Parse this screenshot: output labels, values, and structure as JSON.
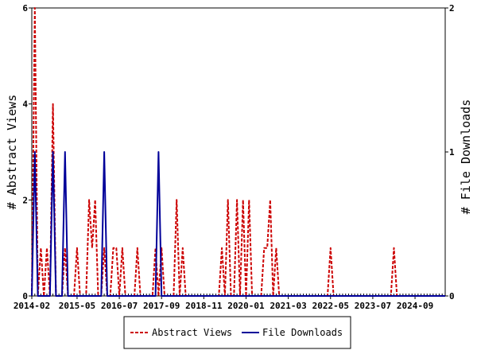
{
  "chart_data": {
    "type": "line",
    "y_left_label": "# Abstract Views",
    "y_right_label": "# File Downloads",
    "y_left_range": [
      0,
      6
    ],
    "y_right_range": [
      0,
      2
    ],
    "y_left_ticks": [
      "0",
      "2",
      "4",
      "6"
    ],
    "y_right_ticks": [
      "0",
      "1",
      "2"
    ],
    "x_range": [
      "2014-02",
      "2025-07"
    ],
    "x_tick_labels": [
      "2014-02",
      "2015-05",
      "2016-07",
      "2017-09",
      "2018-11",
      "2020-01",
      "2021-03",
      "2022-05",
      "2023-07",
      "2024-09"
    ],
    "grid": false,
    "legend_position": "bottom",
    "series": [
      {
        "name": "Abstract Views",
        "axis": "left",
        "color": "#cc0000",
        "style": "dashed",
        "points": [
          [
            "2014-02",
            0
          ],
          [
            "2014-03",
            6
          ],
          [
            "2014-04",
            0
          ],
          [
            "2014-05",
            1
          ],
          [
            "2014-06",
            0
          ],
          [
            "2014-07",
            1
          ],
          [
            "2014-08",
            0
          ],
          [
            "2014-09",
            4
          ],
          [
            "2014-10",
            0
          ],
          [
            "2014-12",
            0
          ],
          [
            "2015-01",
            1
          ],
          [
            "2015-02",
            0
          ],
          [
            "2015-04",
            0
          ],
          [
            "2015-05",
            1
          ],
          [
            "2015-06",
            0
          ],
          [
            "2015-08",
            0
          ],
          [
            "2015-09",
            2
          ],
          [
            "2015-10",
            1
          ],
          [
            "2015-11",
            2
          ],
          [
            "2015-12",
            0
          ],
          [
            "2016-01",
            0
          ],
          [
            "2016-02",
            1
          ],
          [
            "2016-03",
            0
          ],
          [
            "2016-04",
            0
          ],
          [
            "2016-05",
            1
          ],
          [
            "2016-06",
            1
          ],
          [
            "2016-07",
            0
          ],
          [
            "2016-08",
            1
          ],
          [
            "2016-09",
            0
          ],
          [
            "2016-12",
            0
          ],
          [
            "2017-01",
            1
          ],
          [
            "2017-02",
            0
          ],
          [
            "2017-06",
            0
          ],
          [
            "2017-07",
            1
          ],
          [
            "2017-08",
            0
          ],
          [
            "2017-09",
            1
          ],
          [
            "2017-10",
            0
          ],
          [
            "2018-01",
            0
          ],
          [
            "2018-02",
            2
          ],
          [
            "2018-03",
            0
          ],
          [
            "2018-04",
            1
          ],
          [
            "2018-05",
            0
          ],
          [
            "2019-04",
            0
          ],
          [
            "2019-05",
            1
          ],
          [
            "2019-06",
            0
          ],
          [
            "2019-07",
            2
          ],
          [
            "2019-08",
            0
          ],
          [
            "2019-09",
            0
          ],
          [
            "2019-10",
            2
          ],
          [
            "2019-11",
            0
          ],
          [
            "2019-12",
            2
          ],
          [
            "2020-01",
            0
          ],
          [
            "2020-02",
            2
          ],
          [
            "2020-03",
            0
          ],
          [
            "2020-06",
            0
          ],
          [
            "2020-07",
            1
          ],
          [
            "2020-08",
            1
          ],
          [
            "2020-09",
            2
          ],
          [
            "2020-10",
            0
          ],
          [
            "2020-11",
            1
          ],
          [
            "2020-12",
            0
          ],
          [
            "2022-04",
            0
          ],
          [
            "2022-05",
            1
          ],
          [
            "2022-06",
            0
          ],
          [
            "2024-01",
            0
          ],
          [
            "2024-02",
            1
          ],
          [
            "2024-03",
            0
          ],
          [
            "2025-07",
            0
          ]
        ]
      },
      {
        "name": "File Downloads",
        "axis": "right",
        "color": "#000099",
        "style": "solid",
        "points": [
          [
            "2014-02",
            0
          ],
          [
            "2014-03",
            1
          ],
          [
            "2014-04",
            0
          ],
          [
            "2014-08",
            0
          ],
          [
            "2014-09",
            1
          ],
          [
            "2014-10",
            0
          ],
          [
            "2014-12",
            0
          ],
          [
            "2015-01",
            1
          ],
          [
            "2015-02",
            0
          ],
          [
            "2016-01",
            0
          ],
          [
            "2016-02",
            1
          ],
          [
            "2016-03",
            0
          ],
          [
            "2017-07",
            0
          ],
          [
            "2017-08",
            1
          ],
          [
            "2017-09",
            0
          ],
          [
            "2025-07",
            0
          ]
        ]
      }
    ]
  }
}
